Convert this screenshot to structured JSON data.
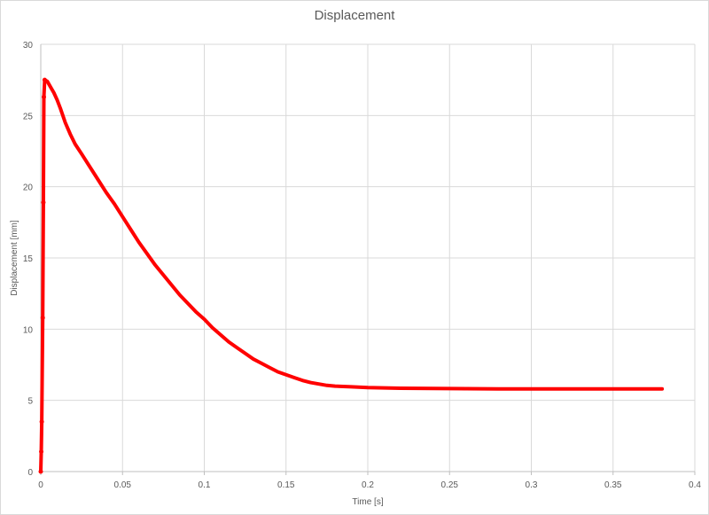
{
  "chart_data": {
    "type": "line",
    "title": "Displacement",
    "xlabel": "Time [s]",
    "ylabel": "Displacement [mm]",
    "xlim": [
      0,
      0.4
    ],
    "ylim": [
      0,
      30
    ],
    "x_ticks": [
      "0",
      "0.05",
      "0.1",
      "0.15",
      "0.2",
      "0.25",
      "0.3",
      "0.35",
      "0.4"
    ],
    "y_ticks": [
      "0",
      "5",
      "10",
      "15",
      "20",
      "25",
      "30"
    ],
    "grid": true,
    "legend": "none",
    "series": [
      {
        "color": "#ff0000",
        "points": [
          [
            0,
            0
          ],
          [
            0.0003,
            1.4
          ],
          [
            0.0006,
            3.5
          ],
          [
            0.0012,
            10.8
          ],
          [
            0.0016,
            18.9
          ],
          [
            0.0019,
            26.3
          ],
          [
            0.0024,
            27.5
          ],
          [
            0.004,
            27.4
          ],
          [
            0.006,
            27.0
          ],
          [
            0.008,
            26.6
          ],
          [
            0.01,
            26.1
          ],
          [
            0.012,
            25.5
          ],
          [
            0.015,
            24.5
          ],
          [
            0.018,
            23.7
          ],
          [
            0.021,
            23.0
          ],
          [
            0.025,
            22.3
          ],
          [
            0.03,
            21.4
          ],
          [
            0.035,
            20.5
          ],
          [
            0.04,
            19.6
          ],
          [
            0.045,
            18.8
          ],
          [
            0.05,
            17.9
          ],
          [
            0.055,
            17.0
          ],
          [
            0.06,
            16.1
          ],
          [
            0.065,
            15.3
          ],
          [
            0.07,
            14.5
          ],
          [
            0.075,
            13.8
          ],
          [
            0.08,
            13.1
          ],
          [
            0.085,
            12.4
          ],
          [
            0.09,
            11.8
          ],
          [
            0.095,
            11.2
          ],
          [
            0.1,
            10.7
          ],
          [
            0.105,
            10.1
          ],
          [
            0.11,
            9.6
          ],
          [
            0.115,
            9.1
          ],
          [
            0.12,
            8.7
          ],
          [
            0.125,
            8.3
          ],
          [
            0.13,
            7.9
          ],
          [
            0.135,
            7.6
          ],
          [
            0.14,
            7.3
          ],
          [
            0.145,
            7.0
          ],
          [
            0.15,
            6.8
          ],
          [
            0.155,
            6.6
          ],
          [
            0.16,
            6.4
          ],
          [
            0.165,
            6.25
          ],
          [
            0.17,
            6.15
          ],
          [
            0.175,
            6.05
          ],
          [
            0.18,
            6.0
          ],
          [
            0.19,
            5.95
          ],
          [
            0.2,
            5.9
          ],
          [
            0.22,
            5.85
          ],
          [
            0.25,
            5.83
          ],
          [
            0.28,
            5.8
          ],
          [
            0.31,
            5.8
          ],
          [
            0.34,
            5.8
          ],
          [
            0.38,
            5.8
          ]
        ],
        "markers": [
          [
            0,
            0
          ],
          [
            0.0003,
            1.4
          ],
          [
            0.0006,
            3.5
          ],
          [
            0.0012,
            10.8
          ],
          [
            0.0016,
            18.9
          ],
          [
            0.0019,
            26.3
          ],
          [
            0.0024,
            27.5
          ]
        ]
      }
    ]
  }
}
